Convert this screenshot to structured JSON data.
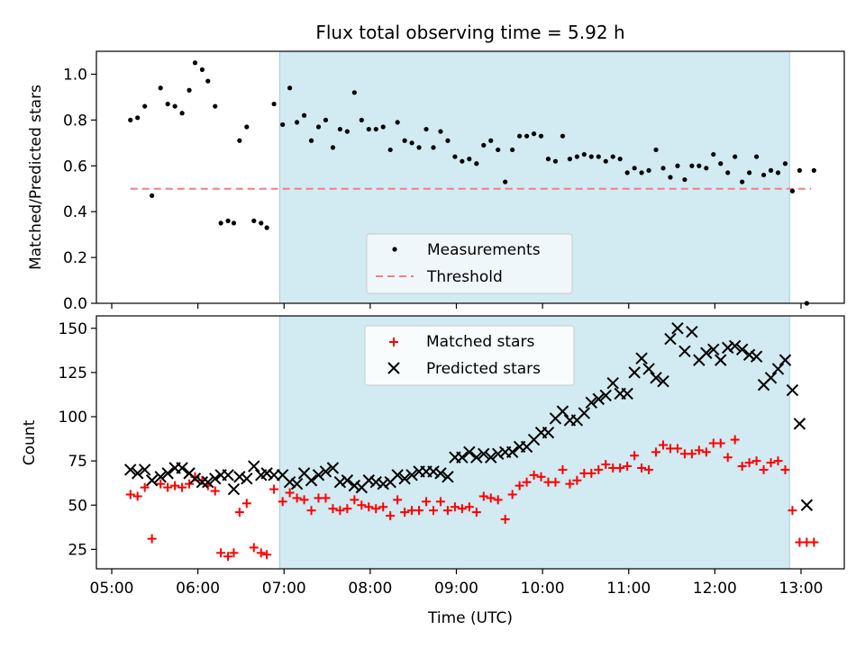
{
  "chart_data": [
    {
      "type": "scatter",
      "title": "Flux total observing time = 5.92 h",
      "ylabel": "Matched/Predicted stars",
      "xlabel": "",
      "ylim": [
        0,
        1.1
      ],
      "yticks": [
        "0.0",
        "0.2",
        "0.4",
        "0.6",
        "0.8",
        "1.0"
      ],
      "shaded_region": {
        "start": "06:57",
        "end": "12:52",
        "color": "#add8e6"
      },
      "legend_placement": "lower-center",
      "series": [
        {
          "name": "Measurements",
          "marker": "dot",
          "color": "#000000",
          "x": [
            "05:13",
            "05:18",
            "05:23",
            "05:28",
            "05:34",
            "05:39",
            "05:44",
            "05:49",
            "05:54",
            "05:58",
            "06:03",
            "06:07",
            "06:12",
            "06:16",
            "06:21",
            "06:25",
            "06:29",
            "06:34",
            "06:39",
            "06:44",
            "06:48",
            "06:53",
            "06:59",
            "07:04",
            "07:09",
            "07:14",
            "07:19",
            "07:24",
            "07:29",
            "07:34",
            "07:39",
            "07:44",
            "07:49",
            "07:54",
            "07:59",
            "08:04",
            "08:09",
            "08:14",
            "08:19",
            "08:24",
            "08:29",
            "08:34",
            "08:39",
            "08:44",
            "08:49",
            "08:54",
            "08:59",
            "09:04",
            "09:09",
            "09:14",
            "09:19",
            "09:24",
            "09:29",
            "09:34",
            "09:39",
            "09:44",
            "09:49",
            "09:54",
            "09:59",
            "10:04",
            "10:09",
            "10:14",
            "10:19",
            "10:24",
            "10:29",
            "10:34",
            "10:39",
            "10:44",
            "10:49",
            "10:54",
            "10:59",
            "11:04",
            "11:09",
            "11:14",
            "11:19",
            "11:24",
            "11:29",
            "11:34",
            "11:39",
            "11:44",
            "11:49",
            "11:54",
            "11:59",
            "12:04",
            "12:09",
            "12:14",
            "12:19",
            "12:24",
            "12:29",
            "12:34",
            "12:39",
            "12:44",
            "12:49",
            "12:54",
            "12:59",
            "13:04",
            "13:09"
          ],
          "y": [
            0.8,
            0.81,
            0.86,
            0.47,
            0.94,
            0.87,
            0.86,
            0.83,
            0.93,
            1.05,
            1.02,
            0.97,
            0.86,
            0.35,
            0.36,
            0.35,
            0.71,
            0.77,
            0.36,
            0.35,
            0.33,
            0.87,
            0.78,
            0.94,
            0.79,
            0.82,
            0.71,
            0.77,
            0.8,
            0.68,
            0.76,
            0.75,
            0.92,
            0.8,
            0.76,
            0.76,
            0.77,
            0.67,
            0.79,
            0.71,
            0.7,
            0.68,
            0.76,
            0.68,
            0.75,
            0.71,
            0.64,
            0.62,
            0.63,
            0.61,
            0.69,
            0.71,
            0.67,
            0.53,
            0.67,
            0.73,
            0.73,
            0.74,
            0.73,
            0.63,
            0.62,
            0.73,
            0.63,
            0.64,
            0.65,
            0.64,
            0.64,
            0.62,
            0.64,
            0.63,
            0.57,
            0.59,
            0.57,
            0.58,
            0.67,
            0.59,
            0.55,
            0.6,
            0.54,
            0.6,
            0.6,
            0.59,
            0.65,
            0.61,
            0.57,
            0.64,
            0.53,
            0.57,
            0.64,
            0.56,
            0.58,
            0.57,
            0.61,
            0.49,
            0.58,
            0.0,
            0.58
          ]
        },
        {
          "name": "Threshold",
          "style": "dashed",
          "color": "#f08080",
          "x": [
            "05:13",
            "13:07"
          ],
          "y": [
            0.5,
            0.5
          ]
        }
      ]
    },
    {
      "type": "scatter",
      "title": "",
      "ylabel": "Count",
      "xlabel": "Time (UTC)",
      "ylim": [
        14,
        157
      ],
      "yticks": [
        "25",
        "50",
        "75",
        "100",
        "125",
        "150"
      ],
      "xticks": [
        "05:00",
        "06:00",
        "07:00",
        "08:00",
        "09:00",
        "10:00",
        "11:00",
        "12:00",
        "13:00"
      ],
      "shaded_region": {
        "start": "06:57",
        "end": "12:52",
        "color": "#add8e6"
      },
      "legend_placement": "upper-center",
      "series": [
        {
          "name": "Matched stars",
          "marker": "plus",
          "color": "#ff0000",
          "x": [
            "05:13",
            "05:18",
            "05:23",
            "05:28",
            "05:34",
            "05:39",
            "05:44",
            "05:49",
            "05:54",
            "05:58",
            "06:03",
            "06:07",
            "06:12",
            "06:16",
            "06:21",
            "06:25",
            "06:29",
            "06:34",
            "06:39",
            "06:44",
            "06:48",
            "06:53",
            "06:59",
            "07:04",
            "07:09",
            "07:14",
            "07:19",
            "07:24",
            "07:29",
            "07:34",
            "07:39",
            "07:44",
            "07:49",
            "07:54",
            "07:59",
            "08:04",
            "08:09",
            "08:14",
            "08:19",
            "08:24",
            "08:29",
            "08:34",
            "08:39",
            "08:44",
            "08:49",
            "08:54",
            "08:59",
            "09:04",
            "09:09",
            "09:14",
            "09:19",
            "09:24",
            "09:29",
            "09:34",
            "09:39",
            "09:44",
            "09:49",
            "09:54",
            "09:59",
            "10:04",
            "10:09",
            "10:14",
            "10:19",
            "10:24",
            "10:29",
            "10:34",
            "10:39",
            "10:44",
            "10:49",
            "10:54",
            "10:59",
            "11:04",
            "11:09",
            "11:14",
            "11:19",
            "11:24",
            "11:29",
            "11:34",
            "11:39",
            "11:44",
            "11:49",
            "11:54",
            "11:59",
            "12:04",
            "12:09",
            "12:14",
            "12:19",
            "12:24",
            "12:29",
            "12:34",
            "12:39",
            "12:44",
            "12:49",
            "12:54",
            "12:59",
            "13:04",
            "13:09"
          ],
          "y": [
            56,
            55,
            60,
            31,
            62,
            60,
            61,
            60,
            62,
            66,
            64,
            61,
            58,
            23,
            21,
            23,
            46,
            51,
            26,
            23,
            22,
            59,
            52,
            57,
            54,
            53,
            47,
            54,
            54,
            48,
            47,
            48,
            53,
            50,
            49,
            48,
            49,
            44,
            53,
            46,
            47,
            47,
            52,
            47,
            52,
            47,
            49,
            48,
            49,
            46,
            55,
            54,
            53,
            42,
            56,
            61,
            63,
            67,
            66,
            63,
            63,
            70,
            62,
            64,
            68,
            68,
            70,
            73,
            71,
            71,
            72,
            78,
            71,
            70,
            80,
            84,
            82,
            82,
            79,
            79,
            81,
            80,
            85,
            85,
            77,
            87,
            72,
            74,
            75,
            70,
            74,
            75,
            70,
            47,
            29,
            29,
            29
          ]
        },
        {
          "name": "Predicted stars",
          "marker": "x",
          "color": "#000000",
          "x": [
            "05:13",
            "05:18",
            "05:23",
            "05:28",
            "05:34",
            "05:39",
            "05:44",
            "05:49",
            "05:54",
            "05:58",
            "06:03",
            "06:07",
            "06:12",
            "06:16",
            "06:21",
            "06:25",
            "06:29",
            "06:34",
            "06:39",
            "06:44",
            "06:48",
            "06:53",
            "06:59",
            "07:04",
            "07:09",
            "07:14",
            "07:19",
            "07:24",
            "07:29",
            "07:34",
            "07:39",
            "07:44",
            "07:49",
            "07:54",
            "07:59",
            "08:04",
            "08:09",
            "08:14",
            "08:19",
            "08:24",
            "08:29",
            "08:34",
            "08:39",
            "08:44",
            "08:49",
            "08:54",
            "08:59",
            "09:04",
            "09:09",
            "09:14",
            "09:19",
            "09:24",
            "09:29",
            "09:34",
            "09:39",
            "09:44",
            "09:49",
            "09:54",
            "09:59",
            "10:04",
            "10:09",
            "10:14",
            "10:19",
            "10:24",
            "10:29",
            "10:34",
            "10:39",
            "10:44",
            "10:49",
            "10:54",
            "10:59",
            "11:04",
            "11:09",
            "11:14",
            "11:19",
            "11:24",
            "11:29",
            "11:34",
            "11:39",
            "11:44",
            "11:49",
            "11:54",
            "11:59",
            "12:04",
            "12:09",
            "12:14",
            "12:19",
            "12:24",
            "12:29",
            "12:34",
            "12:39",
            "12:44",
            "12:49",
            "12:54",
            "12:59",
            "13:04"
          ],
          "y": [
            70,
            68,
            70,
            64,
            66,
            68,
            71,
            71,
            68,
            65,
            63,
            63,
            65,
            67,
            67,
            59,
            66,
            65,
            72,
            67,
            68,
            67,
            67,
            63,
            62,
            68,
            64,
            67,
            69,
            71,
            63,
            64,
            61,
            60,
            64,
            63,
            62,
            63,
            67,
            65,
            67,
            69,
            69,
            69,
            68,
            66,
            77,
            77,
            80,
            77,
            79,
            77,
            79,
            80,
            80,
            83,
            83,
            87,
            91,
            91,
            99,
            103,
            98,
            98,
            102,
            108,
            110,
            112,
            119,
            113,
            113,
            125,
            133,
            127,
            122,
            120,
            144,
            150,
            137,
            148,
            132,
            136,
            138,
            132,
            139,
            140,
            138,
            135,
            134,
            118,
            122,
            127,
            132,
            115,
            96,
            50
          ]
        }
      ]
    }
  ]
}
